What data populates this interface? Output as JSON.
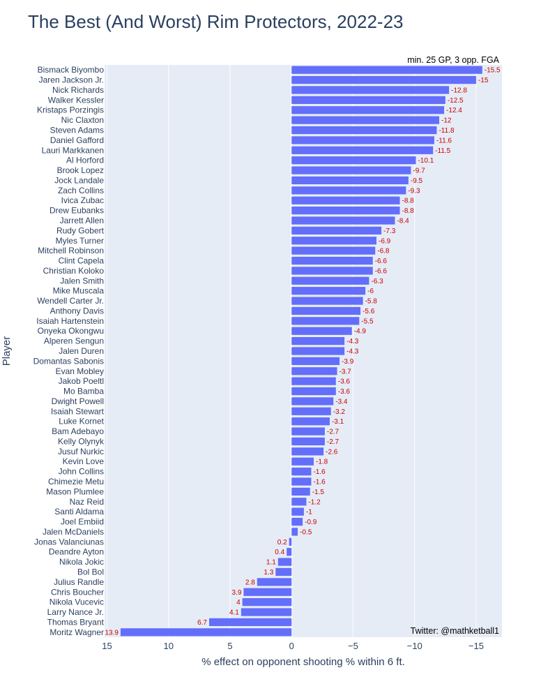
{
  "chart_data": {
    "type": "bar",
    "orientation": "horizontal",
    "title": "The Best (And Worst) Rim Protectors, 2022-23",
    "xlabel": "% effect on opponent shooting % within 6 ft.",
    "ylabel": "Player",
    "xlim": [
      15.2,
      -17.1
    ],
    "xticks": [
      15,
      10,
      5,
      0,
      -5,
      -10,
      -15
    ],
    "xtick_labels": [
      "15",
      "10",
      "5",
      "0",
      "−5",
      "−10",
      "−15"
    ],
    "annotation_top": "min. 25 GP, 3 opp. FGA",
    "annotation_bottom": "Twitter: @mathketball1",
    "bar_color": "#636efa",
    "label_color": "#cc0000",
    "grid": true,
    "categories": [
      "Bismack Biyombo",
      "Jaren Jackson Jr.",
      "Nick Richards",
      "Walker Kessler",
      "Kristaps Porzingis",
      "Nic Claxton",
      "Steven Adams",
      "Daniel Gafford",
      "Lauri Markkanen",
      "Al Horford",
      "Brook Lopez",
      "Jock Landale",
      "Zach Collins",
      "Ivica Zubac",
      "Drew Eubanks",
      "Jarrett Allen",
      "Rudy Gobert",
      "Myles Turner",
      "Mitchell Robinson",
      "Clint Capela",
      "Christian Koloko",
      "Jalen Smith",
      "Mike Muscala",
      "Wendell Carter Jr.",
      "Anthony Davis",
      "Isaiah Hartenstein",
      "Onyeka Okongwu",
      "Alperen Sengun",
      "Jalen Duren",
      "Domantas Sabonis",
      "Evan Mobley",
      "Jakob Poeltl",
      "Mo Bamba",
      "Dwight Powell",
      "Isaiah Stewart",
      "Luke Kornet",
      "Bam Adebayo",
      "Kelly Olynyk",
      "Jusuf Nurkic",
      "Kevin Love",
      "John Collins",
      "Chimezie Metu",
      "Mason Plumlee",
      "Naz Reid",
      "Santi Aldama",
      "Joel Embiid",
      "Jalen McDaniels",
      "Jonas Valanciunas",
      "Deandre Ayton",
      "Nikola Jokic",
      "Bol Bol",
      "Julius Randle",
      "Chris Boucher",
      "Nikola Vucevic",
      "Larry Nance Jr.",
      "Thomas Bryant",
      "Moritz Wagner"
    ],
    "values": [
      -15.5,
      -15,
      -12.8,
      -12.5,
      -12.4,
      -12,
      -11.8,
      -11.6,
      -11.5,
      -10.1,
      -9.7,
      -9.5,
      -9.3,
      -8.8,
      -8.8,
      -8.4,
      -7.3,
      -6.9,
      -6.8,
      -6.6,
      -6.6,
      -6.3,
      -6,
      -5.8,
      -5.6,
      -5.5,
      -4.9,
      -4.3,
      -4.3,
      -3.9,
      -3.7,
      -3.6,
      -3.6,
      -3.4,
      -3.2,
      -3.1,
      -2.7,
      -2.7,
      -2.6,
      -1.8,
      -1.6,
      -1.6,
      -1.5,
      -1.2,
      -1,
      -0.9,
      -0.5,
      0.2,
      0.4,
      1.1,
      1.3,
      2.8,
      3.9,
      4,
      4.1,
      6.7,
      13.9
    ]
  }
}
